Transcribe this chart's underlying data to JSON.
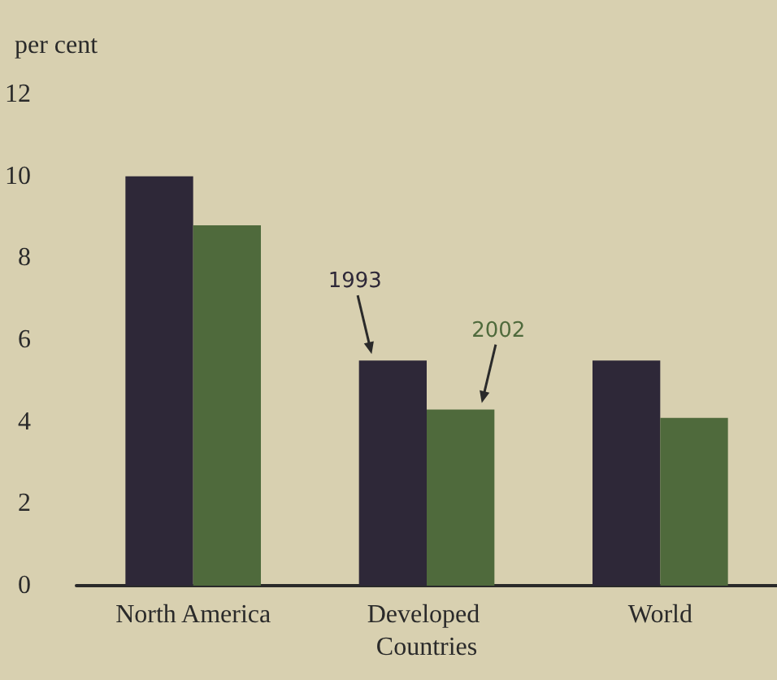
{
  "chart_data": {
    "type": "bar",
    "ylabel": "per cent",
    "categories": [
      "North America",
      "Developed Countries",
      "World"
    ],
    "series": [
      {
        "name": "1993",
        "color": "#2e2838",
        "values": [
          10.0,
          5.5,
          5.5
        ]
      },
      {
        "name": "2002",
        "color": "#4f6a3c",
        "values": [
          8.8,
          4.3,
          4.1
        ]
      }
    ],
    "ylim": [
      0,
      12
    ],
    "yticks": [
      0,
      2,
      4,
      6,
      8,
      10,
      12
    ],
    "grid": false,
    "legend": false
  }
}
